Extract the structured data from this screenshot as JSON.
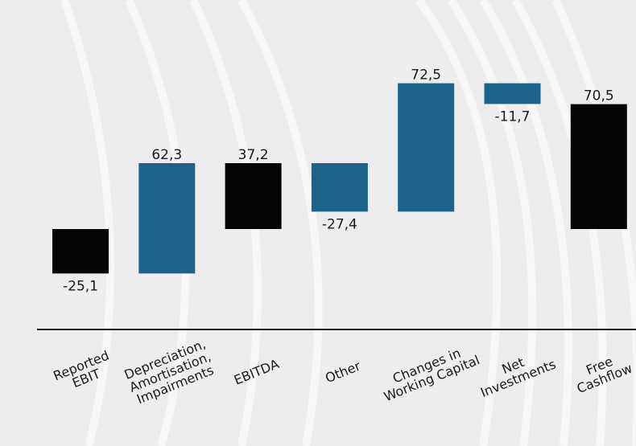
{
  "chart_data": {
    "type": "bar",
    "subtype": "waterfall",
    "title": "",
    "xlabel": "",
    "ylabel": "",
    "categories": [
      [
        "Reported",
        "EBIT"
      ],
      [
        "Depreciation,",
        "Amortisation,",
        "Impairments"
      ],
      [
        "EBITDA"
      ],
      [
        "Other"
      ],
      [
        "Changes in",
        "Working Capital"
      ],
      [
        "Net",
        "Investments"
      ],
      [
        "Free",
        "Cashflow"
      ]
    ],
    "values": [
      -25.1,
      62.3,
      37.2,
      -27.4,
      72.5,
      -11.7,
      70.5
    ],
    "value_labels": [
      "-25,1",
      "62,3",
      "37,2",
      "-27,4",
      "72,5",
      "-11,7",
      "70,5"
    ],
    "bar_kind": [
      "total",
      "delta",
      "total",
      "delta",
      "delta",
      "delta",
      "total"
    ],
    "colors": {
      "total": "#050505",
      "delta": "#1d6288",
      "axis": "#1a1a1a",
      "background": "#ededef"
    },
    "grid": false,
    "legend": "none"
  }
}
